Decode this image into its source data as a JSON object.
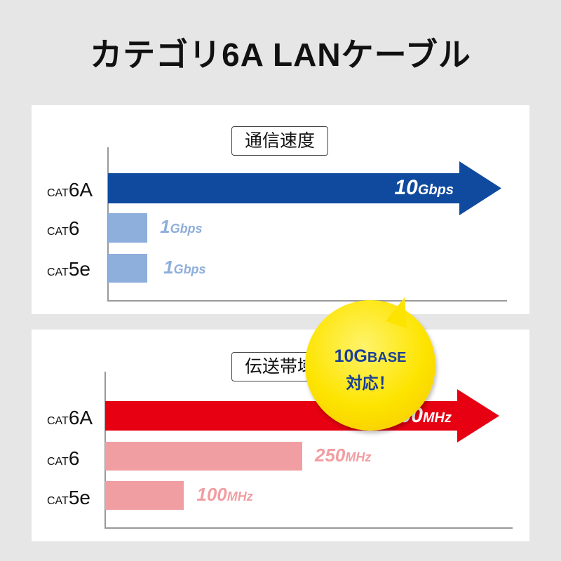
{
  "title": "カテゴリ6A LANケーブル",
  "chart_data": [
    {
      "type": "bar",
      "orientation": "horizontal",
      "title": "通信速度",
      "categories": [
        "CAT6A",
        "CAT6",
        "CAT5e"
      ],
      "category_labels": [
        {
          "prefix": "CAT",
          "suffix": "6A"
        },
        {
          "prefix": "CAT",
          "suffix": "6"
        },
        {
          "prefix": "CAT",
          "suffix": "5e"
        }
      ],
      "values": [
        10,
        1,
        1
      ],
      "unit": "Gbps",
      "value_labels": [
        {
          "n": "10",
          "u": "Gbps"
        },
        {
          "n": "1",
          "u": "Gbps"
        },
        {
          "n": "1",
          "u": "Gbps"
        }
      ],
      "colors": [
        "#0f4a9e",
        "#8eaedb",
        "#8eaedb"
      ],
      "grid": false,
      "callout": {
        "line1_num": "10G",
        "line1_text": "BASE",
        "line2": "対応！",
        "color": "#fde400"
      }
    },
    {
      "type": "bar",
      "orientation": "horizontal",
      "title": "伝送帯域",
      "categories": [
        "CAT6A",
        "CAT6",
        "CAT5e"
      ],
      "category_labels": [
        {
          "prefix": "CAT",
          "suffix": "6A"
        },
        {
          "prefix": "CAT",
          "suffix": "6"
        },
        {
          "prefix": "CAT",
          "suffix": "5e"
        }
      ],
      "values": [
        500,
        250,
        100
      ],
      "unit": "MHz",
      "value_labels": [
        {
          "n": "500",
          "u": "MHz"
        },
        {
          "n": "250",
          "u": "MHz"
        },
        {
          "n": "100",
          "u": "MHz"
        }
      ],
      "colors": [
        "#e60012",
        "#f19ea2",
        "#f19ea2"
      ],
      "grid": false
    }
  ]
}
